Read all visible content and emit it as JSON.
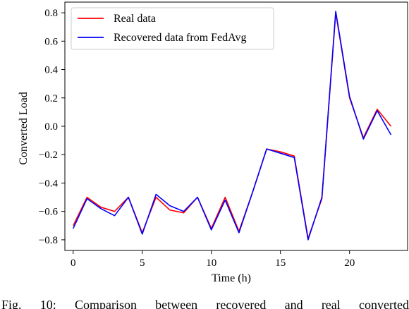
{
  "chart_data": {
    "type": "line",
    "xlabel": "Time (h)",
    "ylabel": "Converted Load",
    "xlim": [
      -0.6,
      24.2
    ],
    "ylim": [
      -0.875,
      0.875
    ],
    "xticks": [
      0,
      5,
      10,
      15,
      20
    ],
    "yticks": [
      -0.8,
      -0.6,
      -0.4,
      -0.2,
      0.0,
      0.2,
      0.4,
      0.6,
      0.8
    ],
    "xtick_labels": [
      "0",
      "5",
      "10",
      "15",
      "20"
    ],
    "ytick_labels": [
      "−0.8",
      "−0.6",
      "−0.4",
      "−0.2",
      "0.0",
      "0.2",
      "0.4",
      "0.6",
      "0.8"
    ],
    "grid": false,
    "legend_position": "top-left",
    "x": [
      0,
      1,
      2,
      3,
      4,
      5,
      6,
      7,
      8,
      9,
      10,
      11,
      12,
      13,
      14,
      15,
      16,
      17,
      18,
      19,
      20,
      21,
      22,
      23
    ],
    "series": [
      {
        "name": "Real data",
        "color": "#ff0000",
        "values": [
          -0.7,
          -0.5,
          -0.57,
          -0.6,
          -0.5,
          -0.75,
          -0.5,
          -0.59,
          -0.61,
          -0.5,
          -0.72,
          -0.5,
          -0.74,
          -0.46,
          -0.16,
          -0.18,
          -0.21,
          -0.79,
          -0.51,
          0.8,
          0.2,
          -0.08,
          0.12,
          0.0
        ]
      },
      {
        "name": "Recovered data from FedAvg",
        "color": "#0000ff",
        "values": [
          -0.72,
          -0.51,
          -0.58,
          -0.63,
          -0.5,
          -0.76,
          -0.48,
          -0.56,
          -0.6,
          -0.5,
          -0.73,
          -0.52,
          -0.75,
          -0.46,
          -0.16,
          -0.19,
          -0.22,
          -0.8,
          -0.5,
          0.81,
          0.21,
          -0.09,
          0.11,
          -0.06
        ]
      }
    ]
  },
  "caption_text": "Fig. 10: Comparison between recovered and real converted"
}
